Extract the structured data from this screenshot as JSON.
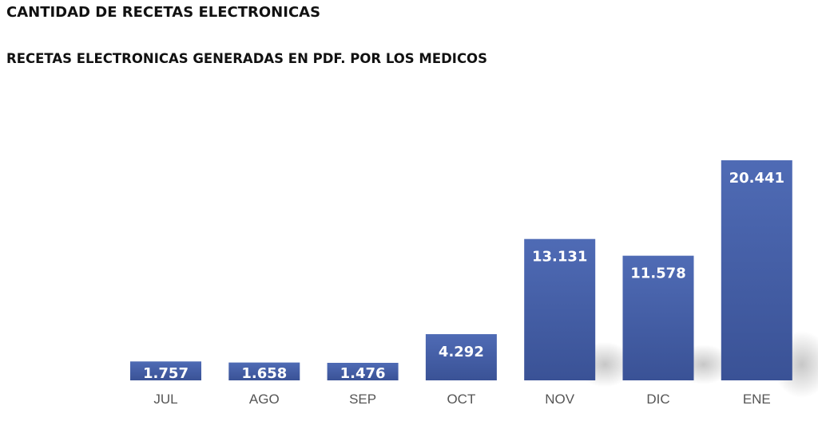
{
  "title": "CANTIDAD DE RECETAS ELECTRONICAS",
  "subtitle": "RECETAS ELECTRONICAS GENERADAS EN PDF. POR LOS MEDICOS",
  "colors": {
    "bar_top": "#4f6bb5",
    "bar_bottom": "#3a5296",
    "label": "#ffffff",
    "category": "#555555"
  },
  "chart_data": {
    "type": "bar",
    "title": "CANTIDAD DE RECETAS ELECTRONICAS",
    "subtitle": "RECETAS ELECTRONICAS GENERADAS EN PDF. POR LOS MEDICOS",
    "categories": [
      "JUL",
      "AGO",
      "SEP",
      "OCT",
      "NOV",
      "DIC",
      "ENE"
    ],
    "values": [
      1757,
      1658,
      1476,
      4292,
      13131,
      11578,
      20441
    ],
    "value_labels": [
      "1.757",
      "1.658",
      "1.476",
      "4.292",
      "13.131",
      "11.578",
      "20.441"
    ],
    "xlabel": "",
    "ylabel": "",
    "ylim": [
      0,
      20441
    ],
    "grid": false,
    "legend": "none"
  }
}
